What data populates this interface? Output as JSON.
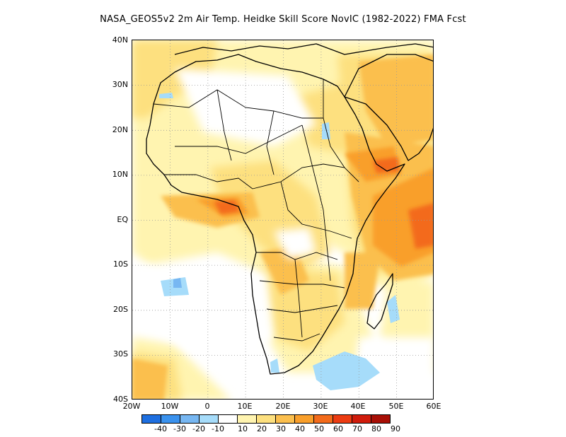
{
  "title": "NASA_GEOS5v2  2m Air Temp. Heidke Skill Score NovIC (1982-2022) FMA Fcst",
  "axes": {
    "lat_labels": [
      "40N",
      "30N",
      "20N",
      "10N",
      "EQ",
      "10S",
      "20S",
      "30S",
      "40S"
    ],
    "lon_labels": [
      "20W",
      "10W",
      "0",
      "10E",
      "20E",
      "30E",
      "40E",
      "50E",
      "60E"
    ]
  },
  "colorbar": {
    "labels": [
      "-40",
      "-30",
      "-20",
      "-10",
      "10",
      "20",
      "30",
      "40",
      "50",
      "60",
      "70",
      "80",
      "90"
    ],
    "colors": [
      "#1e6fe0",
      "#3a92ee",
      "#77b7f2",
      "#a6dcfa",
      "#ffffff",
      "#fff4b0",
      "#fde07f",
      "#fbbf4e",
      "#f99f2b",
      "#f36b1b",
      "#ec3c12",
      "#d01c0c",
      "#a80f06"
    ]
  },
  "map_colors": {
    "l1": "#fff4b0",
    "l2": "#fde07f",
    "l3": "#fbbf4e",
    "l4": "#f99f2b",
    "l5": "#f36b1b",
    "b1": "#a6dcfa",
    "b2": "#77b7f2",
    "b3": "#3a92ee"
  }
}
